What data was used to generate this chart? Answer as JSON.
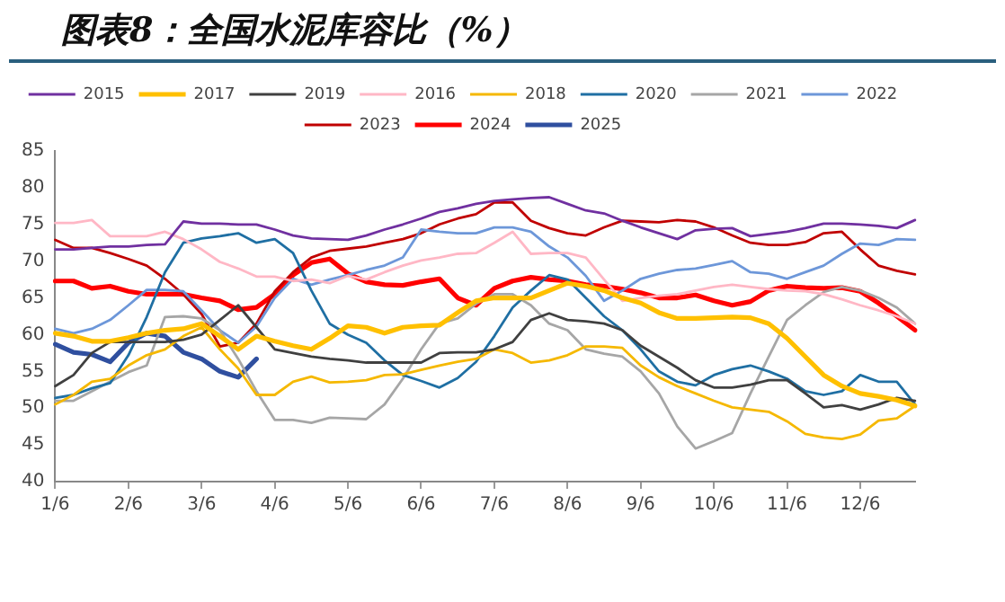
{
  "chart_data": {
    "type": "line",
    "title": "图表8：全国水泥库容比（%）",
    "categories": [
      "1/6",
      null,
      null,
      null,
      "2/6",
      null,
      null,
      null,
      "3/6",
      null,
      null,
      null,
      "4/6",
      null,
      null,
      null,
      "5/6",
      null,
      null,
      null,
      "6/6",
      null,
      null,
      null,
      "7/6",
      null,
      null,
      null,
      "8/6",
      null,
      null,
      null,
      "9/6",
      null,
      null,
      null,
      "10/6",
      null,
      null,
      null,
      "11/6",
      null,
      null,
      null,
      "12/6",
      null,
      null,
      null
    ],
    "ylim": [
      40,
      85
    ],
    "yticks": [
      40,
      45,
      50,
      55,
      60,
      65,
      70,
      75,
      80,
      85
    ],
    "grid": false,
    "legend": "top",
    "marker": "none",
    "series": [
      {
        "name": "2015",
        "color": "#7030a0",
        "values": [
          71.6,
          71.6,
          71.8,
          72,
          72,
          72.2,
          72.3,
          75.4,
          75.1,
          75.1,
          75,
          75,
          74.3,
          73.5,
          73.1,
          73,
          72.9,
          73.5,
          74.3,
          75,
          75.8,
          76.7,
          77.2,
          77.8,
          78.2,
          78.4,
          78.6,
          78.7,
          77.8,
          76.9,
          76.5,
          75.5,
          74.6,
          73.8,
          73,
          74.2,
          74.4,
          74.5,
          73.4,
          73.7,
          74,
          74.5,
          75.1,
          75.1,
          75,
          74.8,
          74.5,
          75.6
        ]
      },
      {
        "name": "2017",
        "color": "#ffc000",
        "values": [
          60.2,
          59.8,
          59.1,
          59.1,
          59.6,
          60.2,
          60.6,
          60.8,
          61.5,
          59.8,
          58,
          59.8,
          59.1,
          58.5,
          58,
          59.5,
          61.2,
          61,
          60.2,
          61,
          61.2,
          61.3,
          63,
          64.6,
          65,
          65,
          65,
          66,
          67,
          66.6,
          66,
          65,
          64.3,
          63,
          62.2,
          62.2,
          62.3,
          62.4,
          62.3,
          61.5,
          59.5,
          57,
          54.5,
          53,
          52,
          51.6,
          51.1,
          50.3
        ]
      },
      {
        "name": "2019",
        "color": "#404040",
        "values": [
          53,
          54.5,
          57.5,
          59,
          59,
          59,
          59,
          59.3,
          60,
          62,
          64,
          61,
          58,
          57.5,
          57,
          56.7,
          56.5,
          56.2,
          56.2,
          56.2,
          56.2,
          57.5,
          57.6,
          57.6,
          58,
          59,
          62,
          62.9,
          62,
          61.8,
          61.5,
          60.6,
          58.5,
          57,
          55.5,
          53.8,
          52.8,
          52.8,
          53.2,
          53.8,
          53.8,
          52,
          50.1,
          50.4,
          49.8,
          50.5,
          51.4,
          51
        ]
      },
      {
        "name": "2016",
        "color": "#ffb7c5",
        "values": [
          75.2,
          75.2,
          75.6,
          73.4,
          73.4,
          73.4,
          74,
          73,
          71.6,
          69.9,
          69,
          67.9,
          67.9,
          67.3,
          67.5,
          67,
          68,
          67.5,
          68.5,
          69.4,
          70.1,
          70.5,
          71,
          71.1,
          72.5,
          74,
          71,
          71.1,
          71.1,
          70.5,
          67.5,
          64.6,
          65,
          65.3,
          65.5,
          66,
          66.5,
          66.8,
          66.5,
          66.2,
          66,
          65.9,
          65.5,
          64.8,
          64,
          63.3,
          62.5,
          61.5
        ]
      },
      {
        "name": "2018",
        "color": "#f5b800",
        "values": [
          50.5,
          51.8,
          53.6,
          54,
          55.8,
          57.2,
          58,
          59.8,
          61,
          58,
          55.4,
          51.8,
          51.8,
          53.6,
          54.3,
          53.5,
          53.6,
          53.8,
          54.5,
          54.6,
          55.2,
          55.8,
          56.3,
          56.7,
          58,
          57.5,
          56.2,
          56.5,
          57.2,
          58.4,
          58.4,
          58.2,
          55.8,
          54.2,
          53,
          52,
          51,
          50.1,
          49.8,
          49.5,
          48.2,
          46.5,
          46,
          45.8,
          46.4,
          48.3,
          48.6,
          50.3
        ]
      },
      {
        "name": "2020",
        "color": "#1f6fa3",
        "values": [
          51.4,
          51.8,
          52.7,
          53.4,
          57.2,
          62.4,
          68.5,
          72.5,
          73.1,
          73.4,
          73.8,
          72.5,
          73,
          71.1,
          66,
          61.5,
          60,
          58.9,
          56.5,
          54.5,
          53.7,
          52.8,
          54.1,
          56.3,
          59.8,
          63.7,
          66,
          68.1,
          67.5,
          65,
          62.5,
          60.6,
          58,
          55,
          53.6,
          53.1,
          54.5,
          55.3,
          55.8,
          55,
          54,
          52.3,
          51.8,
          52.3,
          54.5,
          53.6,
          53.6,
          50.5
        ]
      },
      {
        "name": "2021",
        "color": "#a6a6a6",
        "values": [
          51,
          51,
          52.3,
          53.6,
          54.9,
          55.8,
          62.4,
          62.5,
          62.2,
          60.6,
          56.7,
          52.3,
          48.4,
          48.4,
          48,
          48.7,
          48.6,
          48.5,
          50.5,
          54,
          58,
          61.5,
          62.2,
          64.2,
          65.5,
          65.5,
          64,
          61.5,
          60.6,
          58,
          57.4,
          57,
          55,
          52,
          47.5,
          44.5,
          45.5,
          46.6,
          52,
          57,
          62,
          64,
          65.8,
          66.5,
          66,
          65,
          63.7,
          61.5
        ]
      },
      {
        "name": "2022",
        "color": "#6d97d9",
        "values": [
          60.8,
          60.2,
          60.8,
          62,
          64,
          66.1,
          66.1,
          65.9,
          63.3,
          60.6,
          58.9,
          61.1,
          65,
          67.6,
          66.8,
          67.5,
          68.1,
          68.8,
          69.4,
          70.5,
          74.3,
          74,
          73.8,
          73.8,
          74.6,
          74.6,
          74,
          72,
          70.5,
          68,
          64.6,
          66,
          67.6,
          68.3,
          68.8,
          69,
          69.5,
          70,
          68.5,
          68.3,
          67.6,
          68.5,
          69.4,
          71,
          72.4,
          72.2,
          73,
          72.9
        ]
      },
      {
        "name": "2023",
        "color": "#c00000",
        "values": [
          72.9,
          71.8,
          71.8,
          71.1,
          70.3,
          69.4,
          67.6,
          65.5,
          62.8,
          58.4,
          58.9,
          61.5,
          65.9,
          68.5,
          70.5,
          71.4,
          71.7,
          72,
          72.5,
          73,
          73.8,
          75,
          75.8,
          76.4,
          78,
          78,
          75.5,
          74.5,
          73.8,
          73.5,
          74.6,
          75.5,
          75.4,
          75.3,
          75.6,
          75.4,
          74.6,
          73.5,
          72.5,
          72.2,
          72.2,
          72.6,
          73.8,
          74,
          71.6,
          69.4,
          68.7,
          68.2
        ]
      },
      {
        "name": "2024",
        "color": "#ff0000",
        "values": [
          67.3,
          67.3,
          66.3,
          66.6,
          65.9,
          65.5,
          65.5,
          65.5,
          65,
          64.6,
          63.4,
          63.7,
          65.5,
          68.1,
          69.8,
          70.3,
          68.3,
          67.2,
          66.8,
          66.7,
          67.2,
          67.6,
          65,
          64,
          66.3,
          67.3,
          67.8,
          67.5,
          67.3,
          66.8,
          66.6,
          66.2,
          65.7,
          65,
          65,
          65.4,
          64.6,
          64,
          64.5,
          66,
          66.6,
          66.4,
          66.3,
          66.4,
          65.9,
          64.3,
          62.5,
          60.6
        ]
      },
      {
        "name": "2025",
        "color": "#2f4f9f",
        "values": [
          58.7,
          57.6,
          57.3,
          56.3,
          58.9,
          60.2,
          59.8,
          57.6,
          56.7,
          55,
          54.2,
          56.7,
          null,
          null,
          null,
          null,
          null,
          null,
          null,
          null,
          null,
          null,
          null,
          null,
          null,
          null,
          null,
          null,
          null,
          null,
          null,
          null,
          null,
          null,
          null,
          null,
          null,
          null,
          null,
          null,
          null,
          null,
          null,
          null,
          null,
          null,
          null,
          null
        ]
      }
    ]
  }
}
